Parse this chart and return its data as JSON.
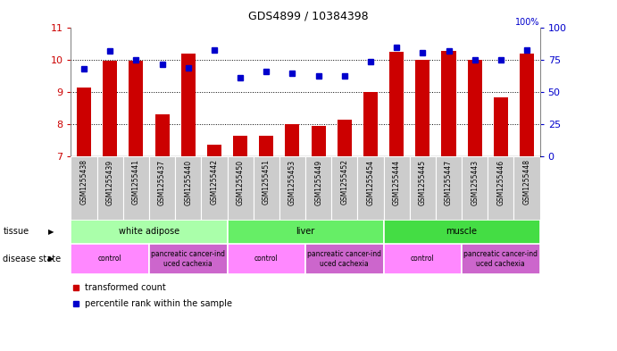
{
  "title": "GDS4899 / 10384398",
  "samples": [
    "GSM1255438",
    "GSM1255439",
    "GSM1255441",
    "GSM1255437",
    "GSM1255440",
    "GSM1255442",
    "GSM1255450",
    "GSM1255451",
    "GSM1255453",
    "GSM1255449",
    "GSM1255452",
    "GSM1255454",
    "GSM1255444",
    "GSM1255445",
    "GSM1255447",
    "GSM1255443",
    "GSM1255446",
    "GSM1255448"
  ],
  "transformed_count": [
    9.15,
    9.97,
    9.98,
    8.3,
    10.2,
    7.35,
    7.65,
    7.65,
    8.0,
    7.95,
    8.15,
    9.0,
    10.25,
    10.0,
    10.3,
    10.0,
    8.85,
    10.2
  ],
  "percentile_rank": [
    68,
    82,
    75,
    72,
    69,
    83,
    61,
    66,
    65,
    63,
    63,
    74,
    85,
    81,
    82,
    75,
    75,
    83
  ],
  "ylim_left": [
    7,
    11
  ],
  "ylim_right": [
    0,
    100
  ],
  "yticks_left": [
    7,
    8,
    9,
    10,
    11
  ],
  "yticks_right": [
    0,
    25,
    50,
    75,
    100
  ],
  "bar_color": "#cc0000",
  "dot_color": "#0000cc",
  "tissue_groups": [
    {
      "label": "white adipose",
      "start": 0,
      "end": 5,
      "color": "#aaffaa"
    },
    {
      "label": "liver",
      "start": 6,
      "end": 11,
      "color": "#66ee66"
    },
    {
      "label": "muscle",
      "start": 12,
      "end": 17,
      "color": "#44dd44"
    }
  ],
  "disease_groups": [
    {
      "label": "control",
      "start": 0,
      "end": 2,
      "color": "#ff88ff"
    },
    {
      "label": "pancreatic cancer-ind\nuced cachexia",
      "start": 3,
      "end": 5,
      "color": "#cc66cc"
    },
    {
      "label": "control",
      "start": 6,
      "end": 8,
      "color": "#ff88ff"
    },
    {
      "label": "pancreatic cancer-ind\nuced cachexia",
      "start": 9,
      "end": 11,
      "color": "#cc66cc"
    },
    {
      "label": "control",
      "start": 12,
      "end": 14,
      "color": "#ff88ff"
    },
    {
      "label": "pancreatic cancer-ind\nuced cachexia",
      "start": 15,
      "end": 17,
      "color": "#cc66cc"
    }
  ],
  "background_color": "#ffffff",
  "tick_bg_color": "#cccccc",
  "grid_color": "#000000",
  "tissue_label": "tissue",
  "disease_label": "disease state"
}
